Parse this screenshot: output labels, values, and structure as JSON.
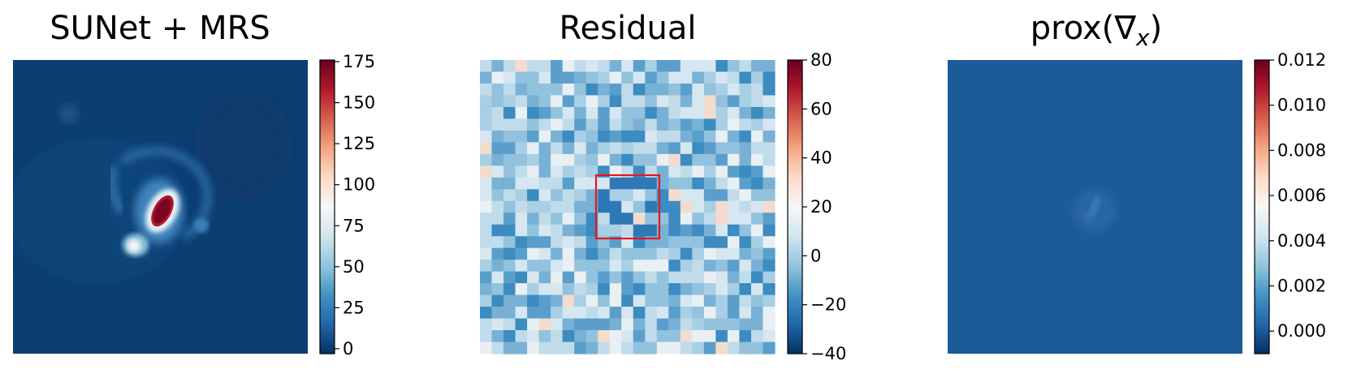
{
  "panels": [
    {
      "title": "SUNet + MRS",
      "colorbar": {
        "min": -3,
        "max": 176,
        "ticks": [
          "0",
          "25",
          "50",
          "75",
          "100",
          "125",
          "150",
          "175"
        ],
        "tick_values": [
          0,
          25,
          50,
          75,
          100,
          125,
          150,
          175
        ]
      }
    },
    {
      "title": "Residual",
      "colorbar": {
        "min": -40,
        "max": 80,
        "ticks": [
          "−40",
          "−20",
          "0",
          "20",
          "40",
          "60",
          "80"
        ],
        "tick_values": [
          -40,
          -20,
          0,
          20,
          40,
          60,
          80
        ]
      }
    },
    {
      "title_main": "prox(∇",
      "title_sub": "x",
      "title_end": ")",
      "colorbar": {
        "min": -0.001,
        "max": 0.012,
        "ticks": [
          "0.000",
          "0.002",
          "0.004",
          "0.006",
          "0.008",
          "0.010",
          "0.012"
        ],
        "tick_values": [
          0,
          0.002,
          0.004,
          0.006,
          0.008,
          0.01,
          0.012
        ]
      }
    }
  ],
  "colors": {
    "colormap": "RdBu_r",
    "highlight_box": "#e8151b"
  },
  "chart_data": [
    {
      "type": "heatmap",
      "title": "SUNet + MRS",
      "colormap": "RdBu_r",
      "clim": [
        0,
        175
      ],
      "background_level": 10,
      "features": [
        {
          "kind": "elongated bright core",
          "peak": 175
        },
        {
          "kind": "secondary blob (lower-left of core)",
          "peak": 85
        },
        {
          "kind": "faint arc around core",
          "peak": 45
        }
      ]
    },
    {
      "type": "heatmap",
      "title": "Residual",
      "colormap": "RdBu_r",
      "clim": [
        -40,
        80
      ],
      "grid": [
        25,
        25
      ],
      "value_range_typical": [
        -25,
        25
      ],
      "annotations": [
        "red square highlighting central region"
      ]
    },
    {
      "type": "heatmap",
      "title": "prox(∇x)",
      "colormap": "RdBu_r",
      "clim": [
        0,
        0.012
      ],
      "background_level": 0.0015,
      "features": [
        {
          "kind": "faint central structure",
          "peak": 0.0024
        }
      ]
    }
  ]
}
